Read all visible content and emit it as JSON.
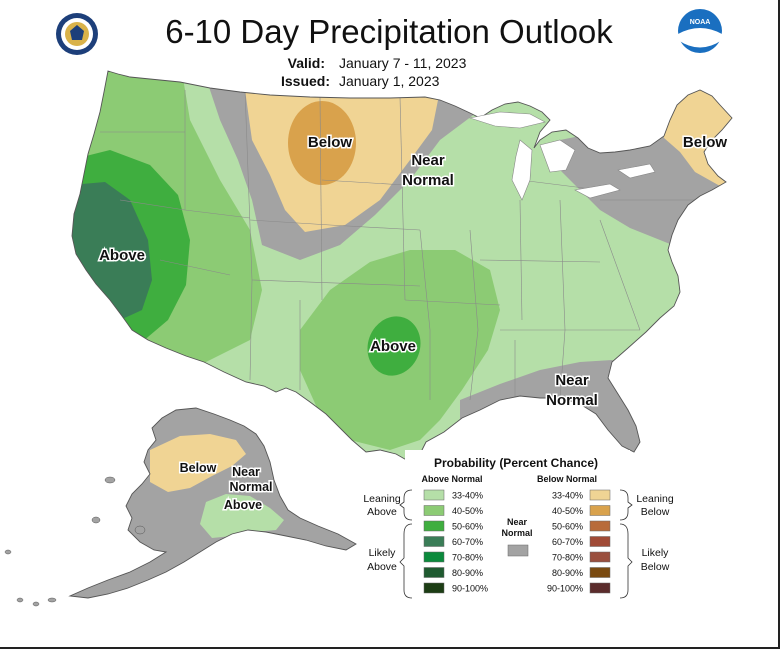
{
  "header": {
    "title": "6-10 Day Precipitation Outlook",
    "valid_label": "Valid:",
    "valid_value": "January 7 - 11, 2023",
    "issued_label": "Issued:",
    "issued_value": "January 1, 2023",
    "left_logo": "doc-seal-icon",
    "right_logo_text": "NOAA"
  },
  "map_labels": {
    "west_coast": "Above",
    "northern_plains": "Below",
    "great_lakes_1": "Near",
    "great_lakes_2": "Normal",
    "new_england": "Below",
    "southern_plains": "Above",
    "southeast_1": "Near",
    "southeast_2": "Normal",
    "alaska_below": "Below",
    "alaska_near_1": "Near",
    "alaska_near_2": "Normal",
    "alaska_above": "Above"
  },
  "legend": {
    "title": "Probability (Percent Chance)",
    "above_header": "Above Normal",
    "below_header": "Below Normal",
    "near_1": "Near",
    "near_2": "Normal",
    "leaning_above_1": "Leaning",
    "leaning_above_2": "Above",
    "likely_above_1": "Likely",
    "likely_above_2": "Above",
    "leaning_below_1": "Leaning",
    "leaning_below_2": "Below",
    "likely_below_1": "Likely",
    "likely_below_2": "Below",
    "above_rows": [
      {
        "label": "33-40%",
        "color": "#b5dfa8"
      },
      {
        "label": "40-50%",
        "color": "#8ccb74"
      },
      {
        "label": "50-60%",
        "color": "#3fae3f"
      },
      {
        "label": "60-70%",
        "color": "#3a7d57"
      },
      {
        "label": "70-80%",
        "color": "#0b8a3c"
      },
      {
        "label": "80-90%",
        "color": "#1f5a30"
      },
      {
        "label": "90-100%",
        "color": "#1c3d14"
      }
    ],
    "below_rows": [
      {
        "label": "33-40%",
        "color": "#f0d494"
      },
      {
        "label": "40-50%",
        "color": "#d9a24c"
      },
      {
        "label": "50-60%",
        "color": "#b86b3a"
      },
      {
        "label": "60-70%",
        "color": "#a04a36"
      },
      {
        "label": "70-80%",
        "color": "#9a4f3e"
      },
      {
        "label": "80-90%",
        "color": "#7a4a10"
      },
      {
        "label": "90-100%",
        "color": "#5b2c2c"
      }
    ],
    "near_color": "#a3a3a3"
  }
}
